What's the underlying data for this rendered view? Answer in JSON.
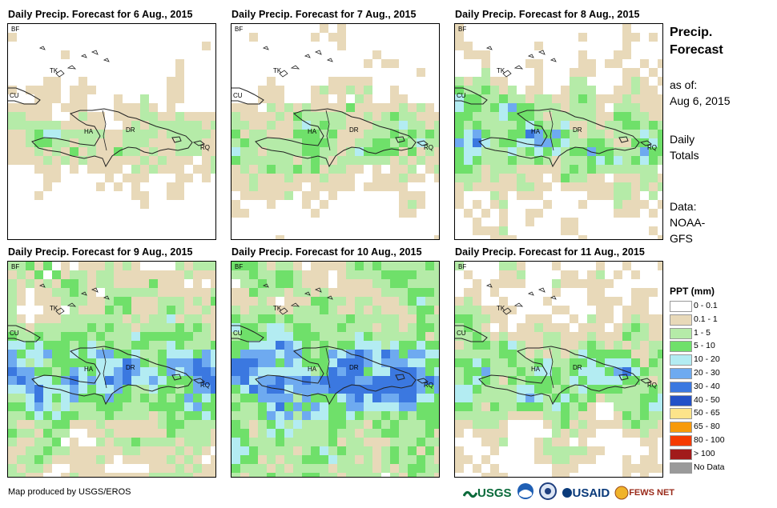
{
  "panels": [
    {
      "title": "Daily Precip. Forecast for 6 Aug., 2015"
    },
    {
      "title": "Daily Precip. Forecast for 7 Aug., 2015"
    },
    {
      "title": "Daily Precip. Forecast for 8 Aug., 2015"
    },
    {
      "title": "Daily Precip. Forecast for 9 Aug., 2015"
    },
    {
      "title": "Daily Precip. Forecast for 10 Aug., 2015"
    },
    {
      "title": "Daily Precip. Forecast for 11 Aug., 2015"
    }
  ],
  "map_labels": {
    "bf": "BF",
    "cu": "CU",
    "tk": "TK",
    "ha": "HA",
    "dr": "DR",
    "rq": "RQ"
  },
  "side": {
    "title_line1": "Precip.",
    "title_line2": "Forecast",
    "asof_line1": "as of:",
    "asof_line2": "Aug 6, 2015",
    "totals_line1": "Daily",
    "totals_line2": "Totals",
    "data_line1": "Data:",
    "data_line2": "NOAA-",
    "data_line3": "GFS"
  },
  "legend": {
    "title": "PPT (mm)",
    "items": [
      {
        "label": "0 - 0.1",
        "color": "#ffffff"
      },
      {
        "label": "0.1 - 1",
        "color": "#e8d9b9"
      },
      {
        "label": "1 - 5",
        "color": "#b5eba8"
      },
      {
        "label": "5 - 10",
        "color": "#6fe06a"
      },
      {
        "label": "10 - 20",
        "color": "#b3ecf2"
      },
      {
        "label": "20 - 30",
        "color": "#6eaaf0"
      },
      {
        "label": "30 - 40",
        "color": "#3b78e0"
      },
      {
        "label": "40 - 50",
        "color": "#2351c7"
      },
      {
        "label": "50 - 65",
        "color": "#fde48a"
      },
      {
        "label": "65 - 80",
        "color": "#f79a0a"
      },
      {
        "label": "80 - 100",
        "color": "#f53b00"
      },
      {
        "label": "> 100",
        "color": "#a11b1b"
      },
      {
        "label": "No Data",
        "color": "#9a9a9a"
      }
    ]
  },
  "credit": "Map produced by USGS/EROS",
  "logos": {
    "usgs": "USGS",
    "usaid": "USAID",
    "fewsnet": "FEWS NET"
  }
}
